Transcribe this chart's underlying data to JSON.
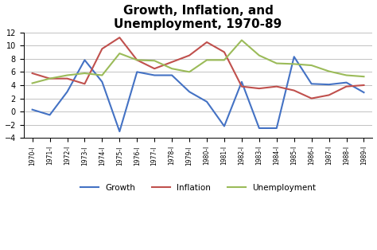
{
  "title": "Growth, Inflation, and\nUnemployment, 1970-89",
  "xlabels": [
    "1970-I",
    "1971-I",
    "1972-I",
    "1973-I",
    "1974-I",
    "1975-I",
    "1976-I",
    "1977-I",
    "1978-I",
    "1979-I",
    "1980-I",
    "1981-I",
    "1982-I",
    "1983-I",
    "1984-I",
    "1985-I",
    "1986-I",
    "1987-I",
    "1988-I",
    "1989-I"
  ],
  "growth": [
    0.3,
    -0.5,
    3.0,
    7.8,
    4.5,
    -3.0,
    6.0,
    5.5,
    5.5,
    3.0,
    1.5,
    -2.2,
    4.5,
    -2.5,
    -2.5,
    8.3,
    4.2,
    4.1,
    4.4,
    2.9
  ],
  "inflation": [
    5.8,
    5.0,
    5.0,
    4.2,
    9.5,
    11.2,
    7.8,
    6.5,
    7.5,
    8.5,
    10.5,
    9.0,
    3.8,
    3.5,
    3.8,
    3.2,
    2.0,
    2.5,
    3.8,
    4.0
  ],
  "unemployment": [
    4.3,
    5.0,
    5.5,
    5.8,
    5.5,
    8.8,
    7.8,
    7.7,
    6.5,
    6.0,
    7.8,
    7.8,
    10.8,
    8.5,
    7.3,
    7.2,
    7.0,
    6.1,
    5.5,
    5.3
  ],
  "growth_color": "#4472C4",
  "inflation_color": "#C0504D",
  "unemployment_color": "#9BBB59",
  "ylim": [
    -4,
    12
  ],
  "yticks": [
    -4,
    -2,
    0,
    2,
    4,
    6,
    8,
    10,
    12
  ],
  "background_color": "#FFFFFF",
  "legend_labels": [
    "Growth",
    "Inflation",
    "Unemployment"
  ]
}
